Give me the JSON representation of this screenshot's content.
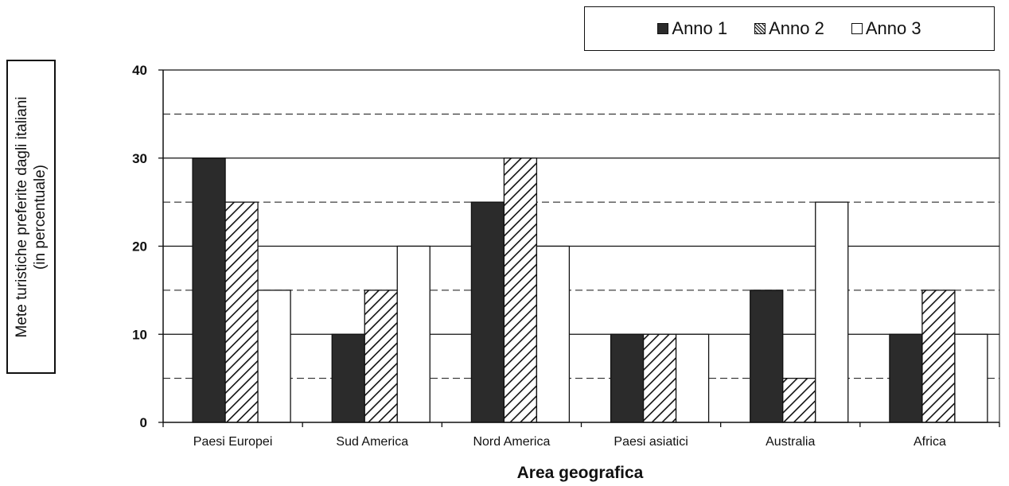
{
  "chart_data": {
    "type": "bar",
    "title": "",
    "xlabel": "Area geografica",
    "ylabel": [
      "Mete turistiche preferite dagli italiani",
      "(in percentuale)"
    ],
    "categories": [
      "Paesi Europei",
      "Sud America",
      "Nord America",
      "Paesi asiatici",
      "Australia",
      "Africa"
    ],
    "series": [
      {
        "name": "Anno 1",
        "values": [
          30,
          10,
          25,
          10,
          15,
          10
        ],
        "fill": "dark"
      },
      {
        "name": "Anno 2",
        "values": [
          25,
          15,
          30,
          10,
          5,
          15
        ],
        "fill": "hatched"
      },
      {
        "name": "Anno 3",
        "values": [
          15,
          20,
          20,
          10,
          25,
          10
        ],
        "fill": "white"
      }
    ],
    "ylim": [
      0,
      40
    ],
    "yticks": [
      0,
      10,
      20,
      30,
      40
    ],
    "grid": {
      "major": "solid",
      "minor": "dashed"
    },
    "legend_position": "top-right"
  },
  "colors": {
    "anno1": "#2b2b2b",
    "anno2_lines": "#111111",
    "anno3": "#ffffff",
    "axis": "#111111"
  }
}
